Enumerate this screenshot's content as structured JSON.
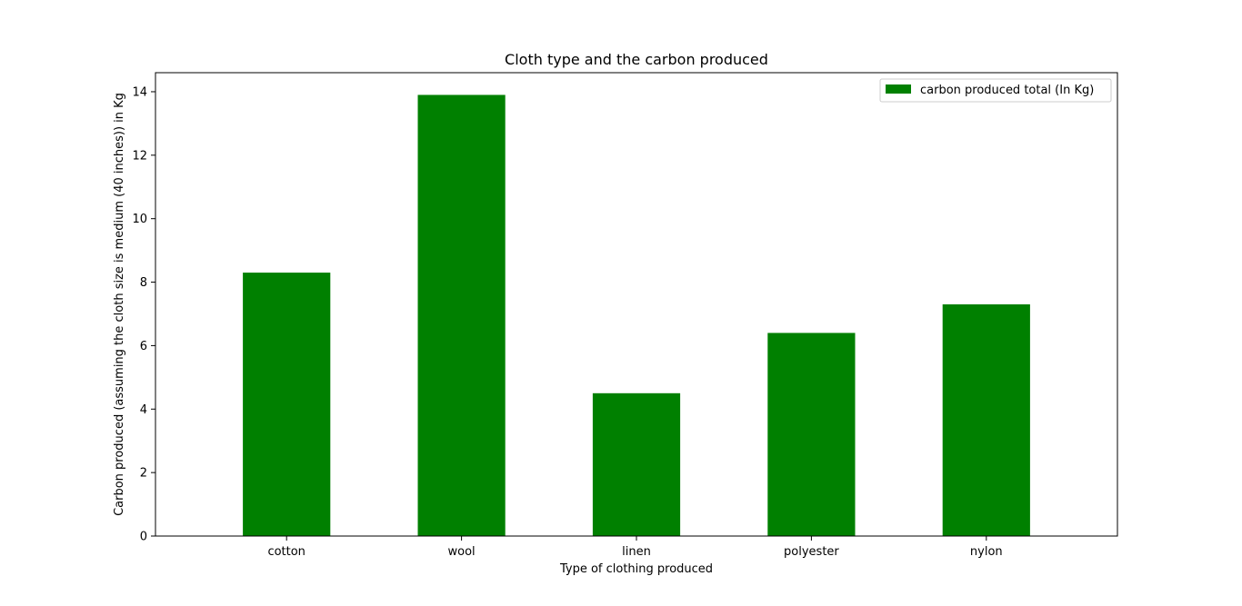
{
  "chart_data": {
    "type": "bar",
    "title": "Cloth type and the carbon produced",
    "xlabel": "Type of clothing produced",
    "ylabel": "Carbon produced (assuming the cloth size is medium (40 inches)) in Kg",
    "categories": [
      "cotton",
      "wool",
      "linen",
      "polyester",
      "nylon"
    ],
    "series": [
      {
        "name": "carbon produced total (In Kg)",
        "values": [
          8.3,
          13.9,
          4.5,
          6.4,
          7.3
        ],
        "color": "#008000"
      }
    ],
    "ylim": [
      0,
      14.6
    ],
    "yticks": [
      "0",
      "2",
      "4",
      "6",
      "8",
      "10",
      "12",
      "14"
    ],
    "grid": false,
    "legend_position": "top-right"
  }
}
